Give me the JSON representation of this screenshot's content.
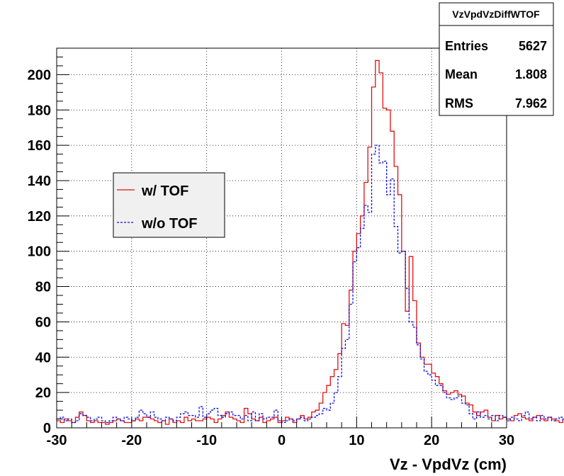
{
  "chart_data": {
    "type": "histogram",
    "xlabel": "Vz - VpdVz (cm)",
    "xlim": [
      -30,
      30
    ],
    "ylim": [
      0,
      215
    ],
    "bin_width": 0.5,
    "x_ticks": [
      -30,
      -20,
      -10,
      0,
      10,
      20,
      30
    ],
    "y_ticks": [
      0,
      20,
      40,
      60,
      80,
      100,
      120,
      140,
      160,
      180,
      200
    ],
    "grid": true,
    "legend": {
      "placement": "left-middle",
      "entries": [
        {
          "label": "w/ TOF",
          "color": "#e01010",
          "style": "solid"
        },
        {
          "label": "w/o TOF",
          "color": "#1010e0",
          "style": "dashed"
        }
      ]
    },
    "stats": {
      "title": "VzVpdVzDiffWTOF",
      "rows": [
        {
          "label": "Entries",
          "value": "5627"
        },
        {
          "label": "Mean",
          "value": "1.808"
        },
        {
          "label": "RMS",
          "value": "7.962"
        }
      ]
    },
    "series": [
      {
        "name": "w/ TOF",
        "color": "#e01010",
        "dashed": false,
        "values": [
          4,
          3,
          5,
          4,
          3,
          6,
          9,
          7,
          4,
          3,
          4,
          3,
          3,
          2,
          3,
          4,
          5,
          4,
          3,
          3,
          4,
          5,
          4,
          6,
          6,
          5,
          4,
          3,
          4,
          2,
          5,
          3,
          4,
          3,
          6,
          4,
          5,
          4,
          4,
          5,
          6,
          5,
          3,
          5,
          7,
          9,
          6,
          5,
          4,
          3,
          11,
          8,
          5,
          4,
          6,
          3,
          4,
          5,
          6,
          3,
          4,
          6,
          5,
          3,
          5,
          7,
          5,
          6,
          9,
          10,
          14,
          20,
          24,
          29,
          33,
          42,
          59,
          58,
          78,
          100,
          110,
          120,
          139,
          159,
          193,
          208,
          201,
          181,
          180,
          168,
          148,
          132,
          100,
          66,
          97,
          72,
          48,
          40,
          36,
          36,
          31,
          29,
          25,
          21,
          19,
          20,
          21,
          19,
          18,
          14,
          13,
          9,
          7,
          9,
          10,
          6,
          4,
          7,
          5,
          6,
          5,
          4,
          7,
          8,
          6,
          5,
          4,
          6,
          7,
          5,
          4,
          6,
          5,
          4,
          3,
          5,
          6,
          4,
          6,
          5,
          4,
          5,
          4,
          3,
          4,
          5,
          3,
          4,
          3,
          4,
          6,
          5,
          4,
          4
        ]
      },
      {
        "name": "w/o TOF",
        "color": "#1010e0",
        "dashed": false,
        "values": [
          5,
          6,
          4,
          5,
          3,
          4,
          8,
          7,
          6,
          4,
          5,
          6,
          4,
          3,
          4,
          6,
          5,
          4,
          6,
          5,
          4,
          6,
          10,
          8,
          6,
          9,
          6,
          5,
          4,
          6,
          5,
          4,
          6,
          8,
          9,
          7,
          7,
          6,
          12,
          6,
          8,
          10,
          11,
          7,
          6,
          8,
          9,
          7,
          7,
          5,
          7,
          4,
          9,
          4,
          8,
          5,
          6,
          6,
          10,
          4,
          3,
          4,
          5,
          4,
          5,
          6,
          4,
          5,
          6,
          7,
          8,
          11,
          10,
          14,
          20,
          29,
          45,
          50,
          70,
          94,
          102,
          113,
          126,
          122,
          155,
          160,
          150,
          151,
          132,
          141,
          114,
          99,
          100,
          79,
          60,
          57,
          47,
          39,
          32,
          30,
          27,
          24,
          24,
          20,
          17,
          16,
          17,
          18,
          14,
          13,
          8,
          5,
          9,
          6,
          7,
          5,
          7,
          4,
          7,
          6,
          4,
          6,
          5,
          4,
          7,
          9,
          5,
          6,
          4,
          7,
          5,
          6,
          4,
          5,
          6,
          4,
          4,
          5,
          6,
          4,
          5,
          7,
          5,
          3,
          4,
          6,
          4,
          5,
          3,
          4,
          6,
          5,
          4,
          4
        ]
      }
    ]
  }
}
